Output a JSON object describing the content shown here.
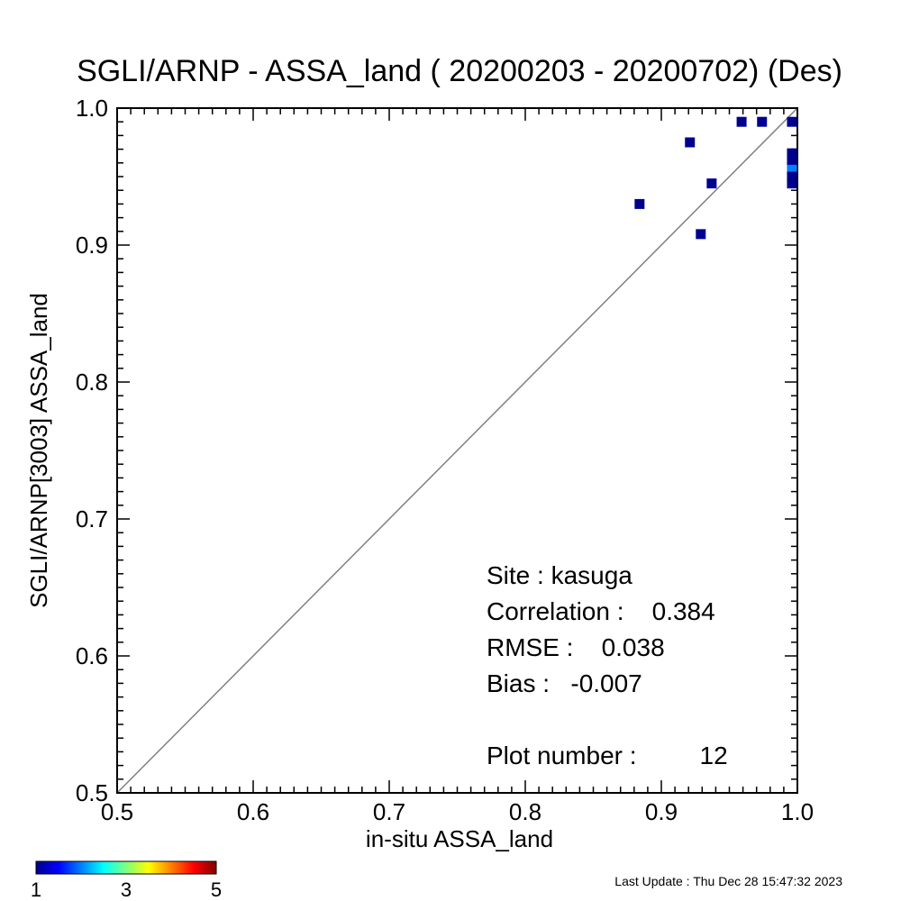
{
  "chart_data": {
    "type": "scatter",
    "title": "SGLI/ARNP - ASSA_land ( 20200203 - 20200702) (Des)",
    "xlabel": "in-situ ASSA_land",
    "ylabel": "SGLI/ARNP[3003]    ASSA_land",
    "xlim": [
      0.5,
      1.0
    ],
    "ylim": [
      0.5,
      1.0
    ],
    "x_ticks": [
      "0.5",
      "0.6",
      "0.7",
      "0.8",
      "0.9",
      "1.0"
    ],
    "y_ticks": [
      "0.5",
      "0.6",
      "0.7",
      "0.8",
      "0.9",
      "1.0"
    ],
    "reference_line": "1:1",
    "points": [
      {
        "x": 0.884,
        "y": 0.93,
        "count": 1
      },
      {
        "x": 0.921,
        "y": 0.975,
        "count": 1
      },
      {
        "x": 0.929,
        "y": 0.908,
        "count": 1
      },
      {
        "x": 0.937,
        "y": 0.945,
        "count": 1
      },
      {
        "x": 0.959,
        "y": 0.99,
        "count": 1
      },
      {
        "x": 0.974,
        "y": 0.99,
        "count": 1
      },
      {
        "x": 0.996,
        "y": 0.99,
        "count": 1
      },
      {
        "x": 0.996,
        "y": 0.967,
        "count": 1
      },
      {
        "x": 0.996,
        "y": 0.961,
        "count": 1
      },
      {
        "x": 0.996,
        "y": 0.955,
        "count": 2
      },
      {
        "x": 0.996,
        "y": 0.95,
        "count": 1
      },
      {
        "x": 0.996,
        "y": 0.945,
        "count": 1
      }
    ],
    "colorbar": {
      "min": 1,
      "max": 5,
      "labels": [
        "1",
        "3",
        "5"
      ],
      "colormap": [
        "#00008f",
        "#0000ff",
        "#00ffff",
        "#ffff00",
        "#ff0000",
        "#800000"
      ]
    }
  },
  "stats": {
    "site": "Site : kasuga",
    "correlation": "Correlation :    0.384",
    "rmse": "RMSE :    0.038",
    "bias": "Bias :   -0.007",
    "plot_number": "Plot number :         12"
  },
  "last_update": "Last Update : Thu Dec 28 15:47:32 2023"
}
